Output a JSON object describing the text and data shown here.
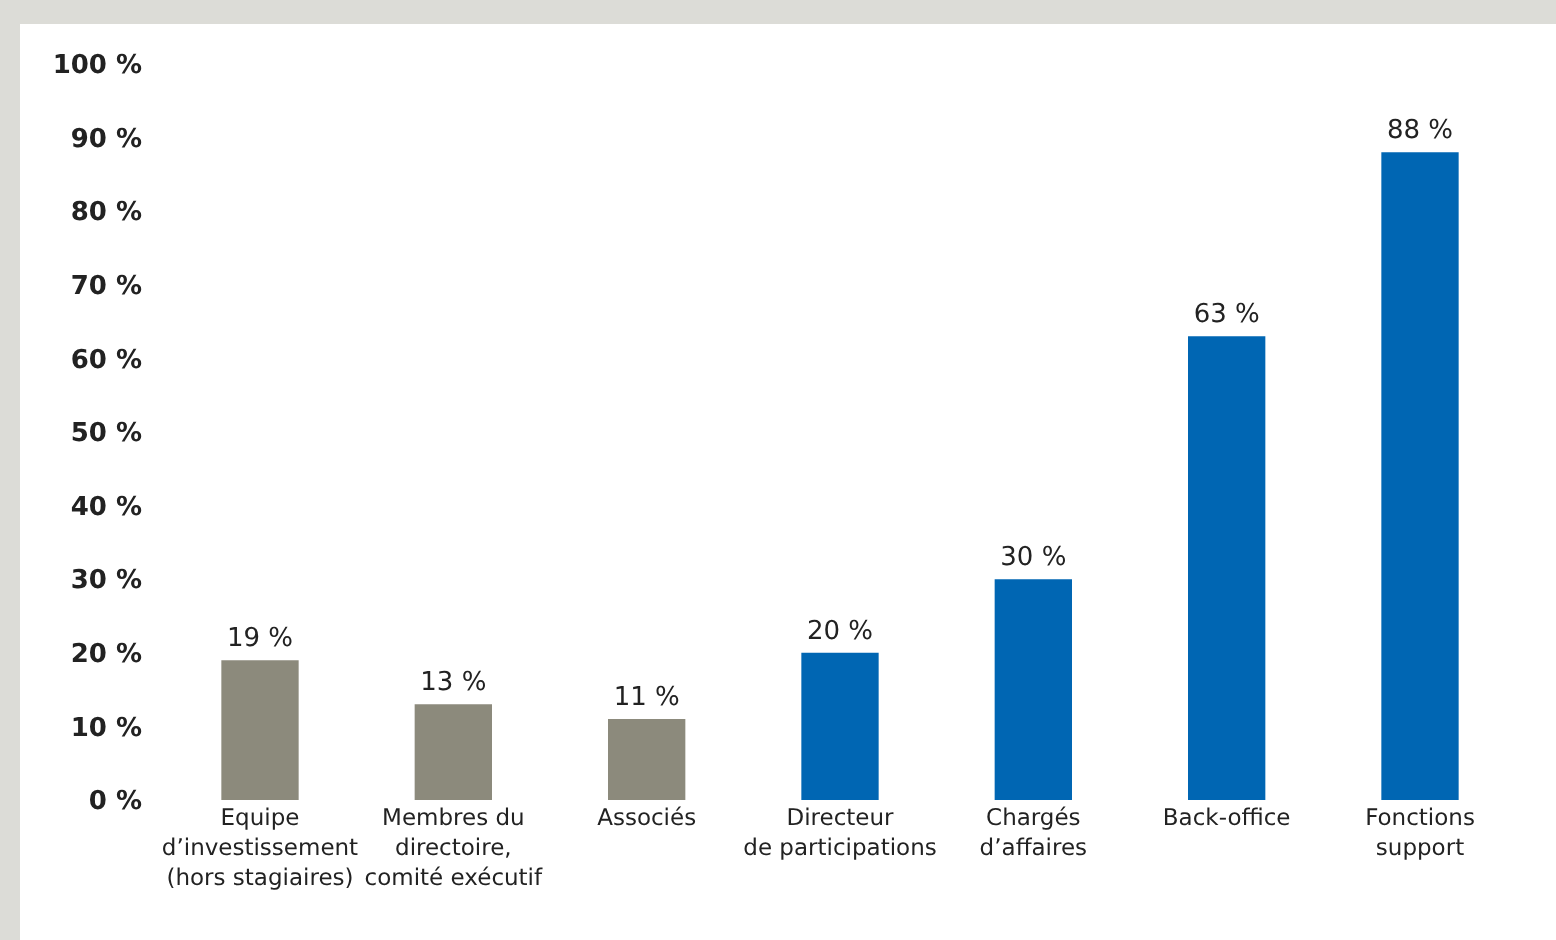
{
  "chart_data": {
    "type": "bar",
    "categories": [
      "Equipe\nd’investissement\n(hors stagiaires)",
      "Membres du\ndirectoire,\ncomité exécutif",
      "Associés",
      "Directeur\nde participations",
      "Chargés\nd’affaires",
      "Back-office",
      "Fonctions\nsupport"
    ],
    "values": [
      19,
      13,
      11,
      20,
      30,
      63,
      88
    ],
    "colors": [
      "#8c8a7c",
      "#8c8a7c",
      "#8c8a7c",
      "#0066b3",
      "#0066b3",
      "#0066b3",
      "#0066b3"
    ],
    "value_labels": [
      "19 %",
      "13 %",
      "11 %",
      "20 %",
      "30 %",
      "63 %",
      "88 %"
    ],
    "ylim": [
      0,
      100
    ],
    "yticks": [
      {
        "value": 0,
        "label": "0 %"
      },
      {
        "value": 10,
        "label": "10 %"
      },
      {
        "value": 20,
        "label": "20 %"
      },
      {
        "value": 30,
        "label": "30 %"
      },
      {
        "value": 40,
        "label": "40 %"
      },
      {
        "value": 50,
        "label": "50 %"
      },
      {
        "value": 60,
        "label": "60 %"
      },
      {
        "value": 70,
        "label": "70 %"
      },
      {
        "value": 80,
        "label": "80 %"
      },
      {
        "value": 90,
        "label": "90 %"
      },
      {
        "value": 100,
        "label": "100 %"
      }
    ],
    "grid": false,
    "legend": false
  }
}
